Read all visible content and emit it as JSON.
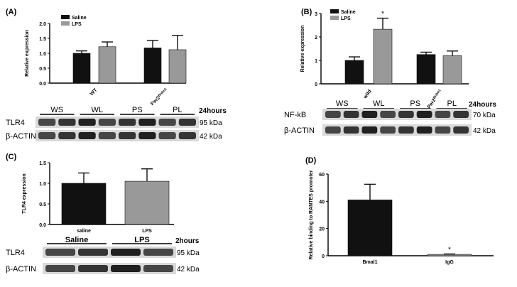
{
  "panels": {
    "A": "(A)",
    "B": "(B)",
    "C": "(C)",
    "D": "(D)"
  },
  "chart_data": [
    {
      "id": "A",
      "type": "bar",
      "ylabel": "Relative expression",
      "ylim": [
        0,
        2.0
      ],
      "yticks": [
        "0.0",
        "0.5",
        "1.0",
        "1.5",
        "2.0"
      ],
      "categories": [
        "WT",
        "Per2^Brdm1"
      ],
      "series": [
        {
          "name": "Saline",
          "color": "#111111",
          "values": [
            1.0,
            1.18
          ],
          "errors": [
            0.08,
            0.25
          ]
        },
        {
          "name": "LPS",
          "color": "#999999",
          "values": [
            1.22,
            1.12
          ],
          "errors": [
            0.16,
            0.48
          ]
        }
      ],
      "legend": "top-left",
      "annotations": []
    },
    {
      "id": "B",
      "type": "bar",
      "ylabel": "Relative expression",
      "ylim": [
        0,
        3
      ],
      "yticks": [
        "0",
        "1",
        "2",
        "3"
      ],
      "categories": [
        "wild",
        "Per2^Brdm1"
      ],
      "series": [
        {
          "name": "Saline",
          "color": "#111111",
          "values": [
            1.0,
            1.25
          ],
          "errors": [
            0.15,
            0.1
          ]
        },
        {
          "name": "LPS",
          "color": "#999999",
          "values": [
            2.33,
            1.2
          ],
          "errors": [
            0.47,
            0.2
          ]
        }
      ],
      "legend": "top-left",
      "annotations": [
        {
          "text": "*",
          "target": "wild-LPS"
        }
      ]
    },
    {
      "id": "C",
      "type": "bar",
      "ylabel": "TLR4 expression",
      "ylim": [
        0,
        1.5
      ],
      "yticks": [
        "0.0",
        "0.5",
        "1.0",
        "1.5"
      ],
      "categories": [
        "saline",
        "LPS"
      ],
      "series": [
        {
          "name": "",
          "colors": [
            "#111111",
            "#999999"
          ],
          "values": [
            1.0,
            1.05
          ],
          "errors": [
            0.25,
            0.3
          ]
        }
      ],
      "annotations": []
    },
    {
      "id": "D",
      "type": "bar",
      "ylabel": "Relative binding to RANTES promoter",
      "ylim": [
        0,
        60
      ],
      "yticks": [
        "0",
        "20",
        "40",
        "60"
      ],
      "categories": [
        "Bmal1",
        "IgG"
      ],
      "series": [
        {
          "name": "",
          "colors": [
            "#111111",
            "#999999"
          ],
          "values": [
            41,
            1
          ],
          "errors": [
            11.5,
            0.3
          ]
        }
      ],
      "annotations": [
        {
          "text": "*",
          "target": "IgG"
        }
      ]
    }
  ],
  "blots": {
    "A": {
      "lanes": [
        "WS",
        "WL",
        "PS",
        "PL"
      ],
      "time": "24hours",
      "rows": [
        {
          "protein": "TLR4",
          "kda": "95 kDa"
        },
        {
          "protein": "β-ACTIN",
          "kda": "42 kDa"
        }
      ]
    },
    "B": {
      "lanes": [
        "WS",
        "WL",
        "PS",
        "PL"
      ],
      "time": "24hours",
      "rows": [
        {
          "protein": "NF-kB",
          "kda": "70 kDa"
        },
        {
          "protein": "β-ACTIN",
          "kda": "42 kDa"
        }
      ]
    },
    "C": {
      "lanes": [
        "Saline",
        "LPS"
      ],
      "time": "2hours",
      "rows": [
        {
          "protein": "TLR4",
          "kda": "95 kDa"
        },
        {
          "protein": "β-ACTIN",
          "kda": "42 kDa"
        }
      ]
    }
  }
}
